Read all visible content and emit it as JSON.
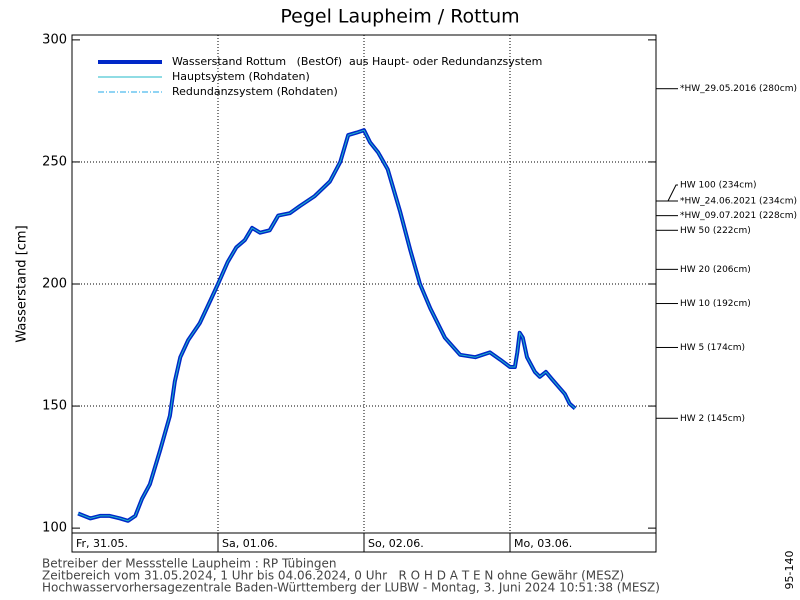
{
  "chart_data": {
    "type": "line",
    "title": "Pegel Laupheim / Rottum",
    "y_label": "Wasserstand [cm]",
    "xlim": [
      0,
      96
    ],
    "xticks": [
      {
        "value": 0,
        "label": "Fr, 31.05."
      },
      {
        "value": 24,
        "label": "Sa, 01.06."
      },
      {
        "value": 48,
        "label": "So, 02.06."
      },
      {
        "value": 72,
        "label": "Mo, 03.06."
      }
    ],
    "ylim": [
      98,
      302
    ],
    "yticks": [
      100,
      150,
      200,
      250,
      300
    ],
    "grid": true,
    "x": [
      1,
      3,
      4.6,
      6.2,
      7.9,
      9.2,
      10.4,
      11.5,
      12.8,
      14.5,
      16.1,
      16.9,
      17.8,
      19.1,
      21,
      22.7,
      24,
      25.6,
      27,
      28.4,
      29.6,
      30.9,
      32.5,
      33.9,
      35.8,
      37.5,
      39.9,
      42.4,
      44.1,
      45.4,
      46.8,
      48,
      49,
      50.3,
      51.9,
      53.9,
      55.6,
      57.2,
      58.9,
      61.3,
      63.8,
      66.3,
      68.7,
      70.4,
      72,
      72.8,
      73.2,
      73.6,
      74.1,
      74.8,
      76.1,
      76.9,
      77.9,
      78.9,
      81,
      81.8,
      82.7
    ],
    "series": [
      {
        "name": "Wasserstand Rottum   (BestOf)  aus Haupt- oder Redundanzsystem",
        "color": "#0028c8",
        "values": [
          106,
          104,
          105,
          105,
          104,
          103,
          105,
          112,
          118,
          132,
          146,
          160,
          170,
          177,
          184,
          193,
          200,
          209,
          215,
          218,
          223,
          221,
          222,
          228,
          229,
          232,
          236,
          242,
          250,
          261,
          262,
          263,
          258,
          254,
          247,
          230,
          214,
          200,
          190,
          178,
          171,
          170,
          172,
          169,
          166,
          166,
          172,
          180,
          178,
          170,
          164,
          162,
          164,
          161,
          155,
          151,
          149
        ]
      }
    ],
    "legend_extra": [
      {
        "name": "Hauptsystem (Rohdaten)",
        "color": "#20b8c8",
        "style": "solid"
      },
      {
        "name": "Redundanzsystem (Rohdaten)",
        "color": "#20a8e8",
        "style": "dashdot"
      }
    ],
    "levels": [
      {
        "label": "*HW_29.05.2016 (280cm)",
        "value": 280
      },
      {
        "label": "HW 100 (234cm)",
        "value": 234
      },
      {
        "label": "*HW_24.06.2021 (234cm)",
        "value": 234
      },
      {
        "label": "*HW_09.07.2021 (228cm)",
        "value": 228
      },
      {
        "label": "HW 50 (222cm)",
        "value": 222
      },
      {
        "label": "HW 20 (206cm)",
        "value": 206
      },
      {
        "label": "HW 10 (192cm)",
        "value": 192
      },
      {
        "label": "HW 5 (174cm)",
        "value": 174
      },
      {
        "label": "HW 2 (145cm)",
        "value": 145
      }
    ],
    "footer": [
      "Betreiber der Messstelle Laupheim : RP Tübingen",
      "Zeitbereich vom 31.05.2024, 1 Uhr bis 04.06.2024, 0 Uhr   R O H D A T E N ohne Gewähr (MESZ)",
      "Hochwasservorhersagezentrale Baden-Württemberg der LUBW - Montag, 3. Juni 2024 10:51:38 (MESZ)"
    ],
    "side_code": "95-140"
  }
}
